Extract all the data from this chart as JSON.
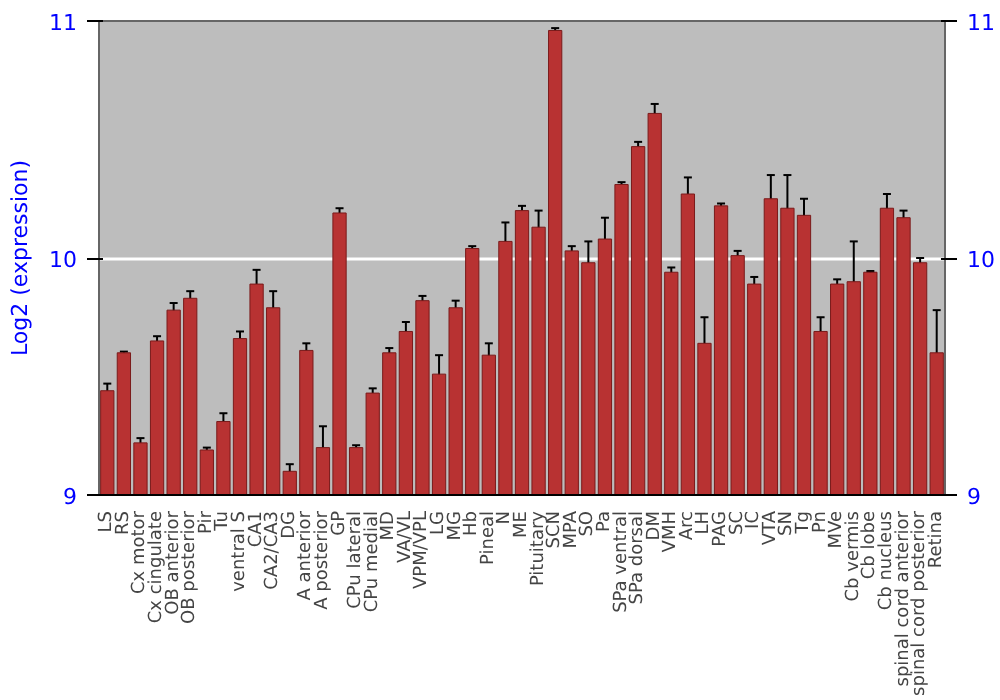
{
  "chart_data": {
    "type": "bar",
    "ylabel": "Log2 (expression)",
    "categories": [
      "LS",
      "RS",
      "Cx motor",
      "Cx cingulate",
      "OB anterior",
      "OB posterior",
      "Pir",
      "Tu",
      "ventral S",
      "CA1",
      "CA2/CA3",
      "DG",
      "A anterior",
      "A posterior",
      "GP",
      "CPu lateral",
      "CPu medial",
      "MD",
      "VA/VL",
      "VPM/VPL",
      "LG",
      "MG",
      "Hb",
      "Pineal",
      "N",
      "ME",
      "Pituitary",
      "SCN",
      "MPA",
      "SO",
      "Pa",
      "SPa ventral",
      "SPa dorsal",
      "DM",
      "VMH",
      "Arc",
      "LH",
      "PAG",
      "SC",
      "IC",
      "VTA",
      "SN",
      "Tg",
      "Pn",
      "MVe",
      "Cb vermis",
      "Cb lobe",
      "Cb nucleus",
      "spinal cord anterior",
      "spinal cord posterior",
      "Retina"
    ],
    "values": [
      9.44,
      9.6,
      9.22,
      9.65,
      9.78,
      9.83,
      9.19,
      9.31,
      9.66,
      9.89,
      9.79,
      9.1,
      9.61,
      9.2,
      10.19,
      9.2,
      9.43,
      9.6,
      9.69,
      9.82,
      9.51,
      9.79,
      10.04,
      9.59,
      10.07,
      10.2,
      10.13,
      10.96,
      10.03,
      9.98,
      10.08,
      10.31,
      10.47,
      10.61,
      9.94,
      10.27,
      9.64,
      10.22,
      10.01,
      9.89,
      10.25,
      10.21,
      10.18,
      9.69,
      9.89,
      9.9,
      9.94,
      10.21,
      10.17,
      9.98,
      9.6
    ],
    "errors": [
      0.03,
      0.005,
      0.02,
      0.02,
      0.03,
      0.03,
      0.01,
      0.035,
      0.03,
      0.06,
      0.07,
      0.03,
      0.03,
      0.09,
      0.02,
      0.01,
      0.02,
      0.02,
      0.04,
      0.02,
      0.08,
      0.03,
      0.01,
      0.05,
      0.08,
      0.02,
      0.07,
      0.01,
      0.02,
      0.09,
      0.09,
      0.01,
      0.02,
      0.04,
      0.02,
      0.07,
      0.11,
      0.01,
      0.02,
      0.03,
      0.1,
      0.14,
      0.07,
      0.06,
      0.02,
      0.17,
      0.005,
      0.06,
      0.03,
      0.02,
      0.18
    ],
    "color": "#b83232",
    "ylim": [
      9,
      11
    ],
    "yticks": [
      9,
      10,
      11
    ],
    "y2lim": [
      9,
      11
    ],
    "y2ticks": [
      9,
      10,
      11
    ],
    "grid": "y"
  }
}
